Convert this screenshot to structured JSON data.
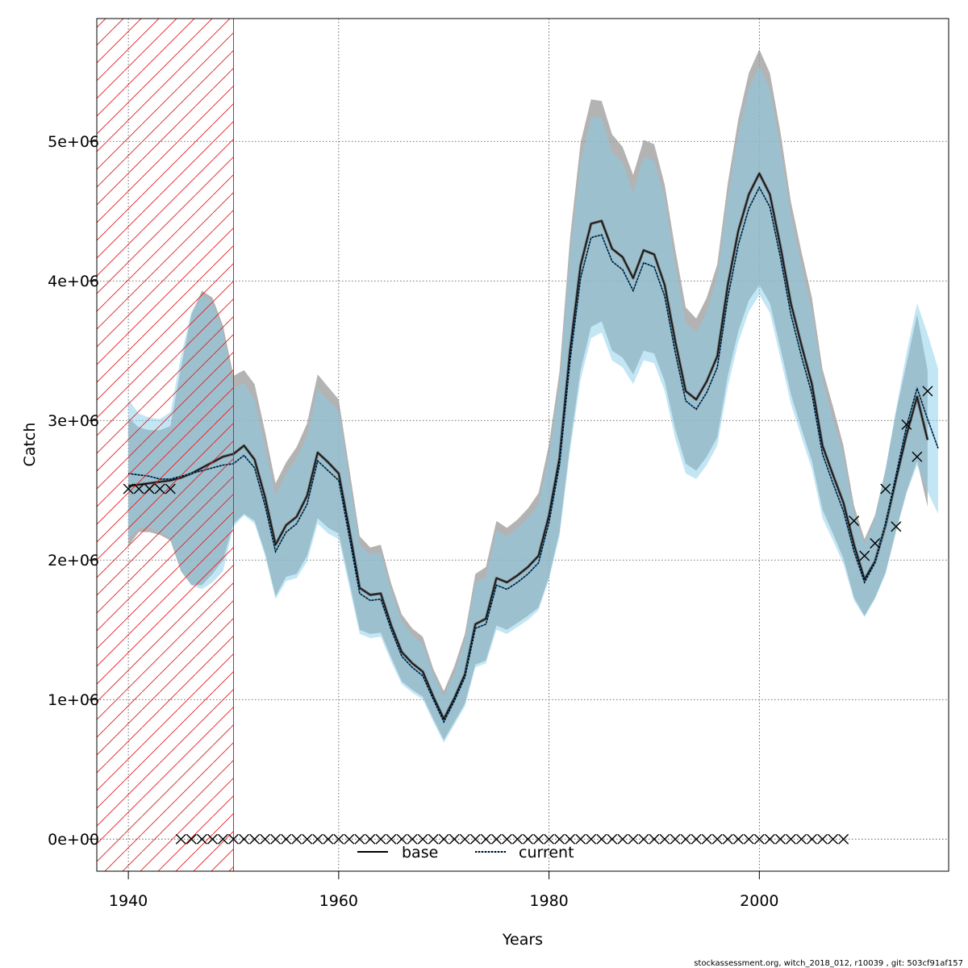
{
  "footer": "stockassessment.org, witch_2018_012, r10039 , git: 503cf91af157",
  "chart_data": {
    "type": "line",
    "xlabel": "Years",
    "ylabel": "Catch",
    "xlim": [
      1937,
      2018
    ],
    "ylim": [
      -230000,
      5880000
    ],
    "xticks": [
      1940,
      1960,
      1980,
      2000
    ],
    "xtick_labels": [
      "1940",
      "1960",
      "1980",
      "2000"
    ],
    "yticks": [
      0,
      1000000,
      2000000,
      3000000,
      4000000,
      5000000
    ],
    "ytick_labels": [
      "0e+00",
      "1e+06",
      "2e+06",
      "3e+06",
      "4e+06",
      "5e+06"
    ],
    "grid": true,
    "hatched_region": {
      "x_from": 1937,
      "x_to": 1950,
      "color": "#e31a1c"
    },
    "legend": {
      "position": "bottom-center",
      "entries": [
        {
          "label": "base",
          "style": "solid"
        },
        {
          "label": "current",
          "style": "dotted"
        }
      ]
    },
    "colors": {
      "base_band": "#999999",
      "current_band": "#87ceeb",
      "base_line": "#000000",
      "current_line": "#000000"
    },
    "series": [
      {
        "name": "base",
        "x": [
          1940,
          1941,
          1942,
          1943,
          1944,
          1945,
          1946,
          1947,
          1948,
          1949,
          1950,
          1951,
          1952,
          1953,
          1954,
          1955,
          1956,
          1957,
          1958,
          1959,
          1960,
          1961,
          1962,
          1963,
          1964,
          1965,
          1966,
          1967,
          1968,
          1969,
          1970,
          1971,
          1972,
          1973,
          1974,
          1975,
          1976,
          1977,
          1978,
          1979,
          1980,
          1981,
          1982,
          1983,
          1984,
          1985,
          1986,
          1987,
          1988,
          1989,
          1990,
          1991,
          1992,
          1993,
          1994,
          1995,
          1996,
          1997,
          1998,
          1999,
          2000,
          2001,
          2002,
          2003,
          2004,
          2005,
          2006,
          2007,
          2008,
          2009,
          2010,
          2011,
          2012,
          2013,
          2014,
          2015,
          2016
        ],
        "y": [
          2530000,
          2540000,
          2550000,
          2560000,
          2570000,
          2590000,
          2620000,
          2660000,
          2700000,
          2740000,
          2760000,
          2820000,
          2720000,
          2450000,
          2110000,
          2250000,
          2310000,
          2460000,
          2770000,
          2700000,
          2620000,
          2220000,
          1800000,
          1750000,
          1760000,
          1530000,
          1340000,
          1260000,
          1200000,
          1020000,
          860000,
          1010000,
          1180000,
          1540000,
          1580000,
          1870000,
          1840000,
          1890000,
          1950000,
          2030000,
          2320000,
          2730000,
          3500000,
          4110000,
          4410000,
          4430000,
          4230000,
          4170000,
          4020000,
          4220000,
          4190000,
          3970000,
          3570000,
          3210000,
          3150000,
          3280000,
          3460000,
          3970000,
          4360000,
          4620000,
          4770000,
          4620000,
          4250000,
          3840000,
          3540000,
          3260000,
          2820000,
          2610000,
          2410000,
          2110000,
          1860000,
          1990000,
          2250000,
          2580000,
          2900000,
          3170000,
          2860000
        ],
        "lower": [
          2100000,
          2200000,
          2200000,
          2180000,
          2140000,
          1920000,
          1820000,
          1820000,
          1900000,
          2000000,
          2260000,
          2330000,
          2280000,
          2050000,
          1740000,
          1880000,
          1900000,
          2030000,
          2300000,
          2230000,
          2190000,
          1850000,
          1500000,
          1470000,
          1480000,
          1300000,
          1130000,
          1070000,
          1020000,
          860000,
          710000,
          840000,
          970000,
          1250000,
          1280000,
          1530000,
          1500000,
          1550000,
          1600000,
          1660000,
          1880000,
          2200000,
          2830000,
          3360000,
          3670000,
          3710000,
          3500000,
          3450000,
          3330000,
          3500000,
          3480000,
          3280000,
          2940000,
          2690000,
          2640000,
          2740000,
          2880000,
          3320000,
          3640000,
          3860000,
          3970000,
          3840000,
          3520000,
          3190000,
          2940000,
          2710000,
          2360000,
          2190000,
          2010000,
          1730000,
          1600000,
          1730000,
          1910000,
          2210000,
          2490000,
          2710000,
          2380000
        ],
        "upper": [
          3020000,
          2950000,
          2930000,
          2930000,
          2960000,
          3380000,
          3760000,
          3930000,
          3880000,
          3680000,
          3320000,
          3360000,
          3260000,
          2920000,
          2550000,
          2700000,
          2810000,
          2980000,
          3330000,
          3240000,
          3150000,
          2660000,
          2170000,
          2090000,
          2110000,
          1830000,
          1610000,
          1510000,
          1450000,
          1220000,
          1060000,
          1240000,
          1470000,
          1900000,
          1950000,
          2280000,
          2230000,
          2290000,
          2370000,
          2480000,
          2830000,
          3350000,
          4310000,
          4990000,
          5300000,
          5290000,
          5050000,
          4960000,
          4760000,
          5010000,
          4980000,
          4690000,
          4230000,
          3810000,
          3730000,
          3880000,
          4120000,
          4700000,
          5160000,
          5490000,
          5660000,
          5490000,
          5070000,
          4570000,
          4210000,
          3880000,
          3370000,
          3100000,
          2820000,
          2390000,
          2150000,
          2320000,
          2650000,
          3060000,
          3410000,
          3760000,
          3360000
        ]
      },
      {
        "name": "current",
        "x": [
          1940,
          1941,
          1942,
          1943,
          1944,
          1945,
          1946,
          1947,
          1948,
          1949,
          1950,
          1951,
          1952,
          1953,
          1954,
          1955,
          1956,
          1957,
          1958,
          1959,
          1960,
          1961,
          1962,
          1963,
          1964,
          1965,
          1966,
          1967,
          1968,
          1969,
          1970,
          1971,
          1972,
          1973,
          1974,
          1975,
          1976,
          1977,
          1978,
          1979,
          1980,
          1981,
          1982,
          1983,
          1984,
          1985,
          1986,
          1987,
          1988,
          1989,
          1990,
          1991,
          1992,
          1993,
          1994,
          1995,
          1996,
          1997,
          1998,
          1999,
          2000,
          2001,
          2002,
          2003,
          2004,
          2005,
          2006,
          2007,
          2008,
          2009,
          2010,
          2011,
          2012,
          2013,
          2014,
          2015,
          2016,
          2017
        ],
        "y": [
          2620000,
          2610000,
          2600000,
          2580000,
          2580000,
          2600000,
          2620000,
          2640000,
          2660000,
          2680000,
          2690000,
          2750000,
          2660000,
          2390000,
          2060000,
          2200000,
          2260000,
          2400000,
          2710000,
          2640000,
          2570000,
          2170000,
          1760000,
          1710000,
          1720000,
          1500000,
          1310000,
          1230000,
          1170000,
          1000000,
          840000,
          990000,
          1160000,
          1510000,
          1540000,
          1820000,
          1790000,
          1840000,
          1900000,
          1980000,
          2270000,
          2680000,
          3430000,
          4020000,
          4310000,
          4330000,
          4140000,
          4080000,
          3930000,
          4130000,
          4100000,
          3890000,
          3490000,
          3140000,
          3080000,
          3200000,
          3380000,
          3880000,
          4260000,
          4520000,
          4670000,
          4530000,
          4170000,
          3760000,
          3460000,
          3190000,
          2760000,
          2550000,
          2350000,
          2060000,
          1840000,
          1980000,
          2260000,
          2610000,
          2960000,
          3230000,
          3010000,
          2800000
        ],
        "lower": [
          2150000,
          2230000,
          2230000,
          2200000,
          2160000,
          1930000,
          1820000,
          1790000,
          1840000,
          1920000,
          2240000,
          2320000,
          2260000,
          2030000,
          1720000,
          1850000,
          1870000,
          1990000,
          2260000,
          2190000,
          2150000,
          1810000,
          1470000,
          1440000,
          1450000,
          1270000,
          1110000,
          1050000,
          1000000,
          840000,
          690000,
          820000,
          950000,
          1230000,
          1260000,
          1500000,
          1470000,
          1520000,
          1570000,
          1640000,
          1860000,
          2170000,
          2780000,
          3290000,
          3590000,
          3630000,
          3430000,
          3380000,
          3260000,
          3430000,
          3410000,
          3210000,
          2870000,
          2620000,
          2580000,
          2680000,
          2820000,
          3240000,
          3560000,
          3780000,
          3900000,
          3770000,
          3450000,
          3120000,
          2880000,
          2650000,
          2300000,
          2140000,
          1970000,
          1710000,
          1590000,
          1720000,
          1900000,
          2200000,
          2480000,
          2680000,
          2490000,
          2330000
        ],
        "upper": [
          3150000,
          3050000,
          3020000,
          3010000,
          3060000,
          3460000,
          3780000,
          3900000,
          3850000,
          3640000,
          3230000,
          3270000,
          3150000,
          2820000,
          2460000,
          2620000,
          2730000,
          2890000,
          3230000,
          3140000,
          3070000,
          2590000,
          2110000,
          2040000,
          2050000,
          1780000,
          1560000,
          1460000,
          1400000,
          1180000,
          1020000,
          1190000,
          1420000,
          1840000,
          1880000,
          2210000,
          2170000,
          2230000,
          2300000,
          2400000,
          2750000,
          3260000,
          4190000,
          4850000,
          5170000,
          5170000,
          4920000,
          4850000,
          4630000,
          4890000,
          4860000,
          4600000,
          4120000,
          3700000,
          3630000,
          3780000,
          4030000,
          4600000,
          5060000,
          5380000,
          5540000,
          5370000,
          4960000,
          4470000,
          4120000,
          3790000,
          3290000,
          3010000,
          2750000,
          2330000,
          2120000,
          2300000,
          2650000,
          3080000,
          3490000,
          3840000,
          3620000,
          3370000
        ]
      }
    ],
    "observed_points": {
      "marker": "x",
      "x": [
        1940,
        1941,
        1942,
        1943,
        1944,
        1945,
        1946,
        1947,
        1948,
        1949,
        1950,
        1951,
        1952,
        1953,
        1954,
        1955,
        1956,
        1957,
        1958,
        1959,
        1960,
        1961,
        1962,
        1963,
        1964,
        1965,
        1966,
        1967,
        1968,
        1969,
        1970,
        1971,
        1972,
        1973,
        1974,
        1975,
        1976,
        1977,
        1978,
        1979,
        1980,
        1981,
        1982,
        1983,
        1984,
        1985,
        1986,
        1987,
        1988,
        1989,
        1990,
        1991,
        1992,
        1993,
        1994,
        1995,
        1996,
        1997,
        1998,
        1999,
        2000,
        2001,
        2002,
        2003,
        2004,
        2005,
        2006,
        2007,
        2008,
        2009,
        2010,
        2011,
        2012,
        2013,
        2014,
        2015,
        2016
      ],
      "y": [
        2510000,
        2510000,
        2510000,
        2510000,
        2510000,
        0,
        0,
        0,
        0,
        0,
        0,
        0,
        0,
        0,
        0,
        0,
        0,
        0,
        0,
        0,
        0,
        0,
        0,
        0,
        0,
        0,
        0,
        0,
        0,
        0,
        0,
        0,
        0,
        0,
        0,
        0,
        0,
        0,
        0,
        0,
        0,
        0,
        0,
        0,
        0,
        0,
        0,
        0,
        0,
        0,
        0,
        0,
        0,
        0,
        0,
        0,
        0,
        0,
        0,
        0,
        0,
        0,
        0,
        0,
        0,
        0,
        0,
        0,
        0,
        2280000,
        2030000,
        2120000,
        2510000,
        2240000,
        2970000,
        2740000,
        3210000
      ]
    }
  }
}
